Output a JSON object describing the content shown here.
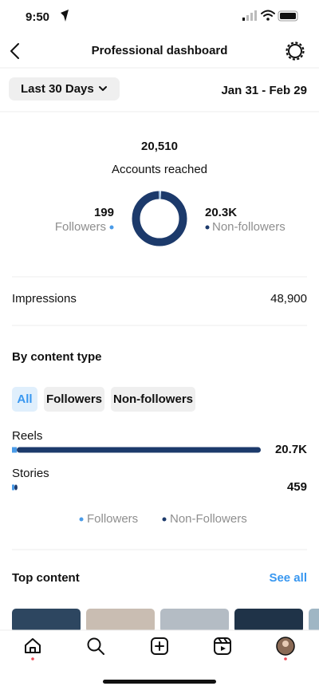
{
  "status_bar": {
    "time": "9:50"
  },
  "header": {
    "title": "Professional dashboard"
  },
  "date_filter": {
    "label": "Last 30 Days",
    "range": "Jan 31 - Feb 29"
  },
  "accounts_reached": {
    "total": "20,510",
    "label": "Accounts reached",
    "followers": {
      "value": 199,
      "label": "Followers",
      "color": "#4a9be8"
    },
    "non_followers": {
      "value": 20311,
      "value_label": "20.3K",
      "label": "Non-followers",
      "color": "#1c3a6b"
    }
  },
  "impressions": {
    "label": "Impressions",
    "value": "48,900"
  },
  "content_type": {
    "title": "By content type",
    "filters": [
      "All",
      "Followers",
      "Non-followers"
    ],
    "active_filter": 0,
    "categories": [
      {
        "name": "Reels",
        "total": "20.7K",
        "followers": 400,
        "non_followers": 20300
      },
      {
        "name": "Stories",
        "total": "459",
        "followers": 200,
        "non_followers": 259
      }
    ],
    "legend": [
      "Followers",
      "Non-Followers"
    ]
  },
  "top_content": {
    "title": "Top content",
    "link": "See all"
  }
}
